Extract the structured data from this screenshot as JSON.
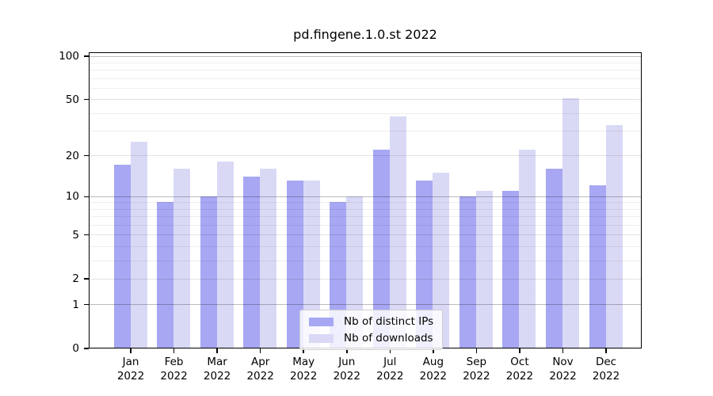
{
  "chart_data": {
    "type": "bar",
    "title": "pd.fingene.1.0.st 2022",
    "categories": [
      "Jan",
      "Feb",
      "Mar",
      "Apr",
      "May",
      "Jun",
      "Jul",
      "Aug",
      "Sep",
      "Oct",
      "Nov",
      "Dec"
    ],
    "x_year_label": "2022",
    "series": [
      {
        "name": "Nb of distinct IPs",
        "color": "#a7a7f3",
        "values": [
          17,
          9,
          10,
          14,
          13,
          9,
          22,
          13,
          10,
          11,
          16,
          12
        ]
      },
      {
        "name": "Nb of downloads",
        "color": "#d9d9f6",
        "values": [
          25,
          16,
          18,
          16,
          13,
          10,
          38,
          15,
          11,
          22,
          51,
          33
        ]
      }
    ],
    "yscale": "log1p",
    "ylim": [
      0,
      100
    ],
    "y_ticks": [
      100,
      50,
      20,
      10,
      5,
      2,
      1,
      0
    ],
    "y_minor_gridlines": [
      3,
      4,
      6,
      7,
      8,
      9,
      30,
      40,
      60,
      70,
      80,
      90
    ],
    "grid": true,
    "legend_position": "inside-bottom-center",
    "axis_color": "#000000",
    "major_gridline_values": [
      1,
      10,
      100
    ]
  }
}
